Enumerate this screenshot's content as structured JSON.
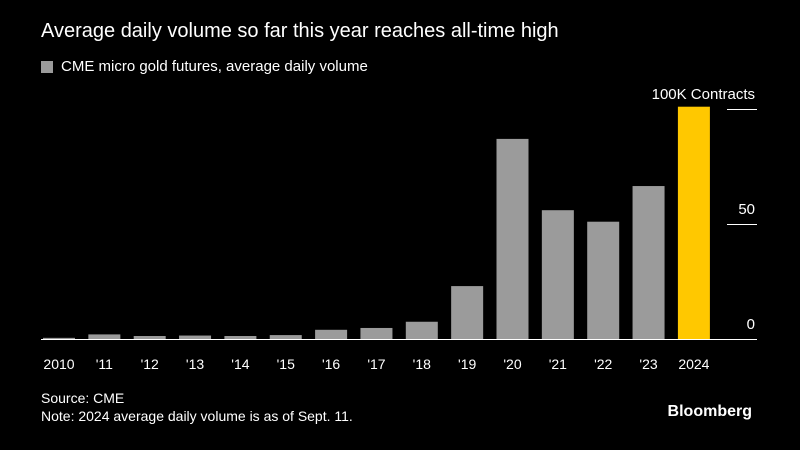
{
  "title": "Average daily volume so far this year reaches all-time high",
  "legend": {
    "label": "CME micro gold futures, average daily volume",
    "color": "#9b9b9b"
  },
  "source": "Source: CME",
  "note": "Note: 2024 average daily volume is as of Sept. 11.",
  "brand": "Bloomberg",
  "colors": {
    "bar": "#9b9b9b",
    "highlight": "#ffc800",
    "axis": "#ffffff"
  },
  "chart_data": {
    "type": "bar",
    "categories": [
      "2010",
      "'11",
      "'12",
      "'13",
      "'14",
      "'15",
      "'16",
      "'17",
      "'18",
      "'19",
      "'20",
      "'21",
      "'22",
      "'23",
      "2024"
    ],
    "values": [
      0.5,
      2,
      1.3,
      1.5,
      1.3,
      1.7,
      4,
      4.8,
      7.5,
      23,
      87,
      56,
      51,
      66.5,
      101
    ],
    "highlight_index": 14,
    "y_ticks": [
      {
        "value": 0,
        "label": "0"
      },
      {
        "value": 50,
        "label": "50"
      },
      {
        "value": 100,
        "label": "100K Contracts"
      }
    ],
    "ylim": [
      0,
      100
    ],
    "y_axis_position": "right",
    "grid": false
  }
}
